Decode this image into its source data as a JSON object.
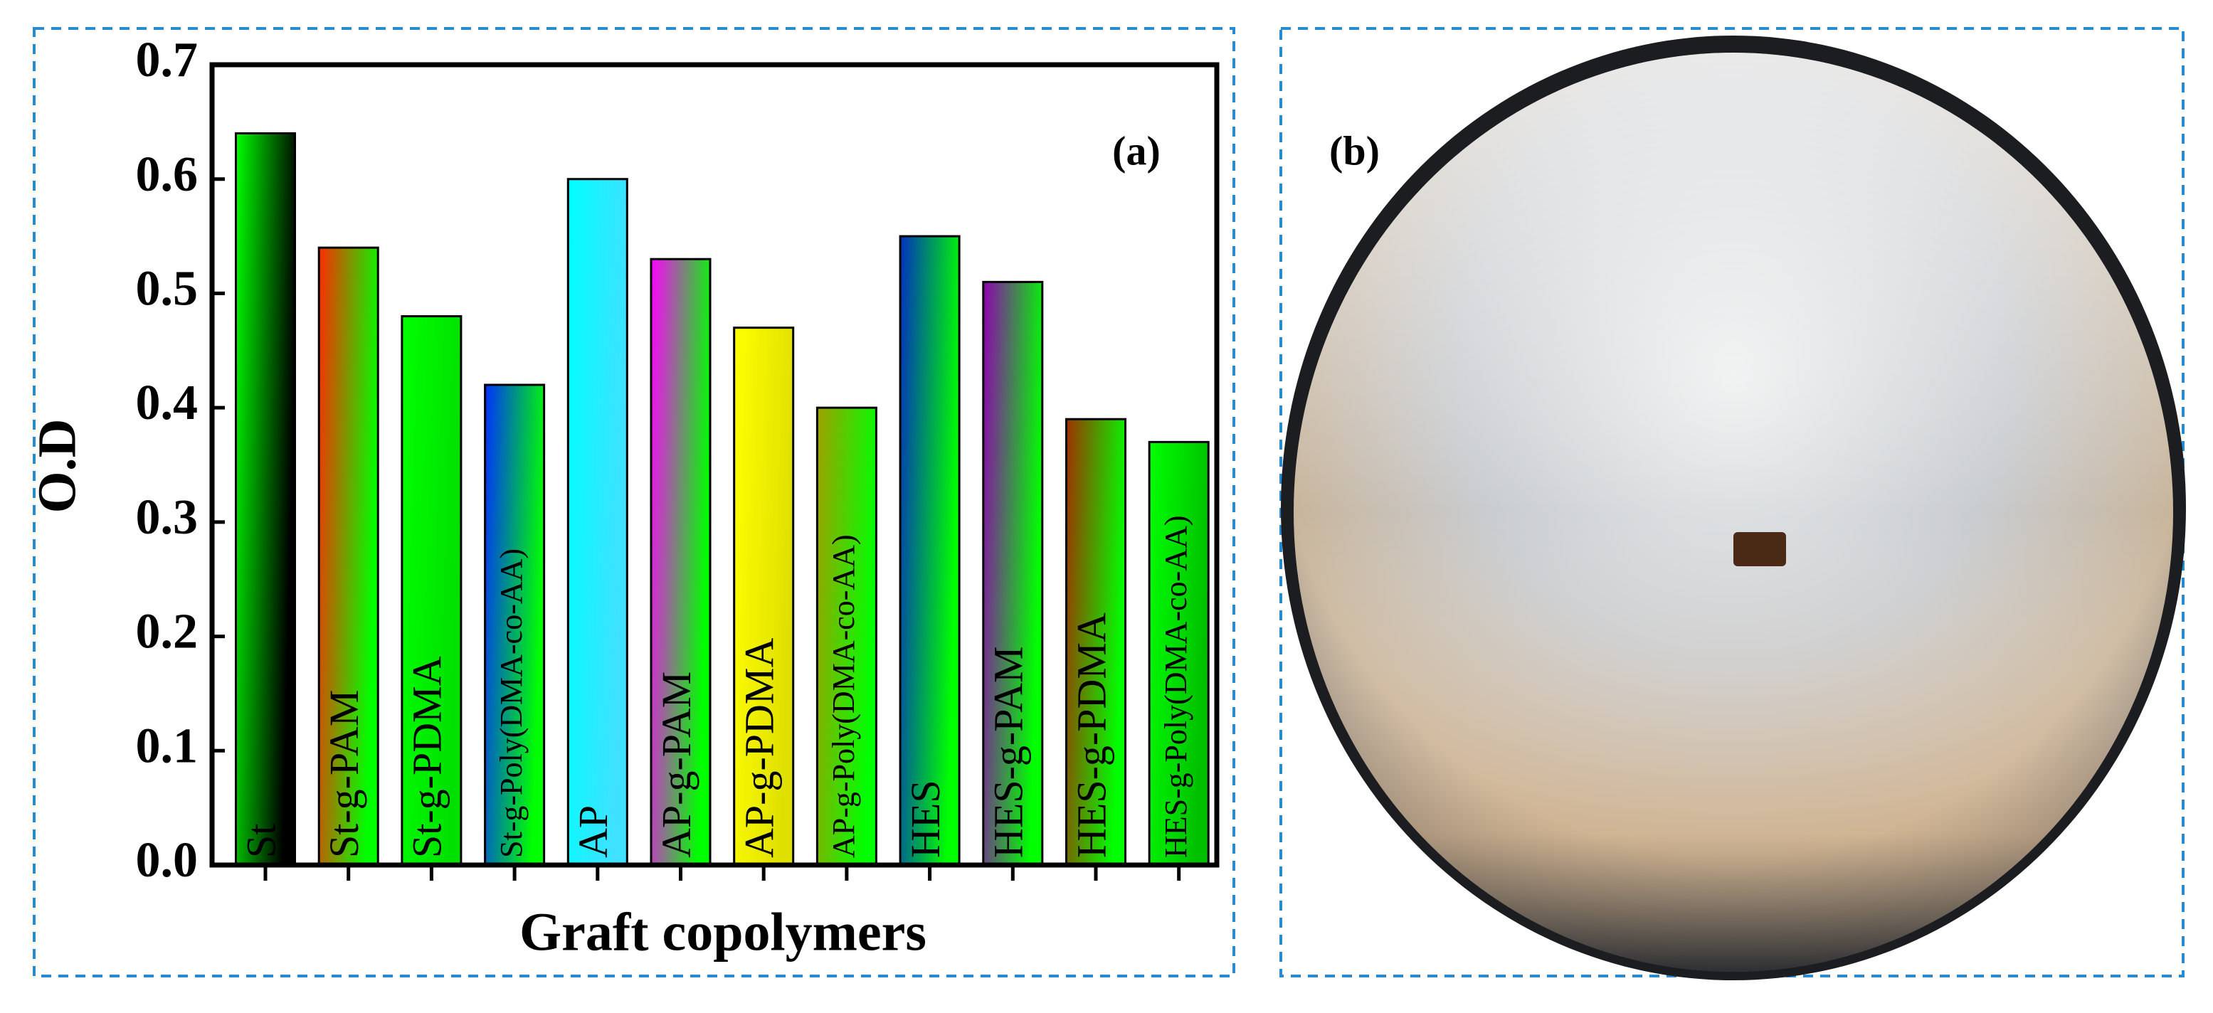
{
  "chart_data": {
    "type": "bar",
    "panel_label": "(a)",
    "ylabel": "O.D",
    "xlabel": "Graft copolymers",
    "categories": [
      "St",
      "St-g-PAM",
      "St-g-PDMA",
      "St-g-Poly(DMA-co-AA)",
      "AP",
      "AP-g-PAM",
      "AP-g-PDMA",
      "AP-g-Poly(DMA-co-AA)",
      "HES",
      "HES-g-PAM",
      "HES-g-PDMA",
      "HES-g-Poly(DMA-co-AA)"
    ],
    "values": [
      0.64,
      0.54,
      0.48,
      0.42,
      0.6,
      0.53,
      0.47,
      0.4,
      0.55,
      0.51,
      0.39,
      0.37
    ],
    "colors": [
      [
        "#00ff00",
        "#000000"
      ],
      [
        "#ff2a00",
        "#00ff00"
      ],
      [
        "#00ff00",
        "#00e000"
      ],
      [
        "#0030ff",
        "#00ff00"
      ],
      [
        "#00ffff",
        "#40e0ff"
      ],
      [
        "#ff00ff",
        "#00ff00"
      ],
      [
        "#ffff00",
        "#e0e000"
      ],
      [
        "#a0a000",
        "#00ff00"
      ],
      [
        "#0030c0",
        "#00ff00"
      ],
      [
        "#9000b0",
        "#00ff00"
      ],
      [
        "#a03000",
        "#00ff00"
      ],
      [
        "#00ff00",
        "#00c000"
      ]
    ],
    "ylim": [
      0,
      0.7
    ],
    "yticks": [
      {
        "value": 0,
        "label": "0.0"
      },
      0.1,
      0.2,
      0.3,
      0.4,
      0.5,
      0.6,
      0.7
    ]
  },
  "panel_b": {
    "label": "(b)"
  }
}
